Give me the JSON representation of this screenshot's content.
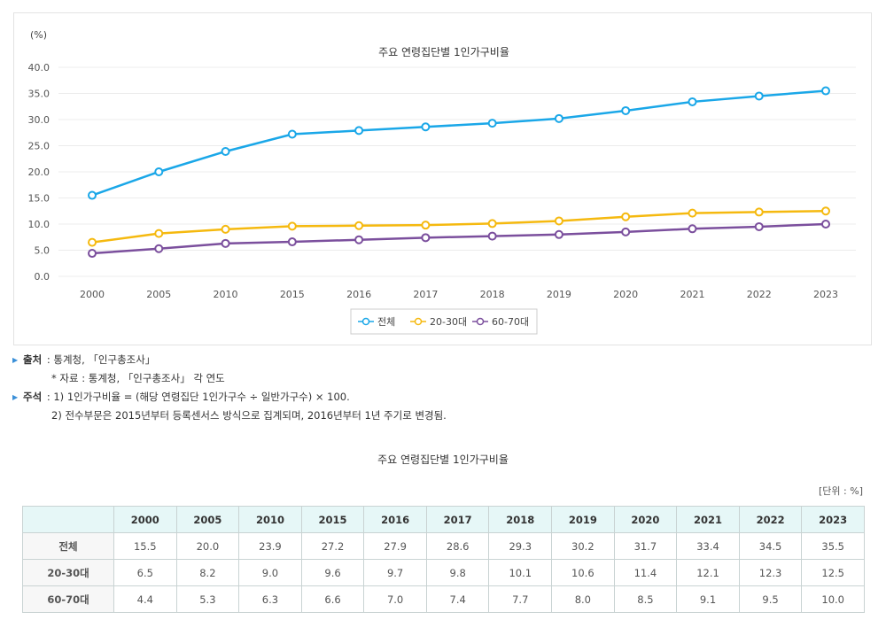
{
  "chart_data": {
    "type": "line",
    "title": "주요 연령집단별 1인가구비율",
    "ylabel": "(%)",
    "ylim": [
      0,
      40
    ],
    "yticks": [
      "0.0",
      "5.0",
      "10.0",
      "15.0",
      "20.0",
      "25.0",
      "30.0",
      "35.0",
      "40.0"
    ],
    "categories": [
      "2000",
      "2005",
      "2010",
      "2015",
      "2016",
      "2017",
      "2018",
      "2019",
      "2020",
      "2021",
      "2022",
      "2023"
    ],
    "grid": true,
    "legend_placement": "bottom",
    "series": [
      {
        "name": "전체",
        "color": "#1aa7e8",
        "values": [
          15.5,
          20.0,
          23.9,
          27.2,
          27.9,
          28.6,
          29.3,
          30.2,
          31.7,
          33.4,
          34.5,
          35.5
        ]
      },
      {
        "name": "20-30대",
        "color": "#f5b90f",
        "values": [
          6.5,
          8.2,
          9.0,
          9.6,
          9.7,
          9.8,
          10.1,
          10.6,
          11.4,
          12.1,
          12.3,
          12.5
        ]
      },
      {
        "name": "60-70대",
        "color": "#7b4f9d",
        "values": [
          4.4,
          5.3,
          6.3,
          6.6,
          7.0,
          7.4,
          7.7,
          8.0,
          8.5,
          9.1,
          9.5,
          10.0
        ]
      }
    ]
  },
  "notes": {
    "source_label": "출처",
    "source": "통계청, 「인구총조사」",
    "source_sub": "* 자료 : 통계청, 「인구총조사」 각 연도",
    "note_label": "주석",
    "note1": "1) 1인가구비율 = (해당 연령집단 1인가구수 ÷ 일반가구수) × 100.",
    "note2": "2) 전수부문은 2015년부터 등록센서스 방식으로 집계되며, 2016년부터 1년 주기로 변경됨."
  },
  "table": {
    "title": "주요 연령집단별 1인가구비율",
    "unit": "[단위 : %]"
  }
}
